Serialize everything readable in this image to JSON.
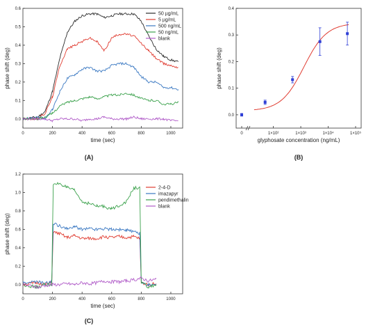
{
  "chart_data": [
    {
      "panel": "(A)",
      "type": "line",
      "xlabel": "time (sec)",
      "ylabel": "phase shift (deg)",
      "xlim": [
        0,
        1080
      ],
      "ylim": [
        -0.05,
        0.6
      ],
      "xticks": [
        0,
        200,
        400,
        600,
        800,
        1000
      ],
      "yticks": [
        0.0,
        0.1,
        0.2,
        0.3,
        0.4,
        0.5,
        0.6
      ],
      "legend": "top-right",
      "series": [
        {
          "name": "50 µg/mL",
          "color": "#2b2b2b",
          "x": [
            0,
            100,
            150,
            200,
            250,
            300,
            350,
            400,
            450,
            500,
            550,
            600,
            650,
            700,
            750,
            800,
            850,
            900,
            950,
            1000,
            1050
          ],
          "y": [
            0.0,
            0.01,
            0.04,
            0.15,
            0.33,
            0.47,
            0.53,
            0.56,
            0.57,
            0.57,
            0.55,
            0.56,
            0.57,
            0.57,
            0.57,
            0.53,
            0.45,
            0.38,
            0.34,
            0.32,
            0.31
          ]
        },
        {
          "name": "5 µg/mL",
          "color": "#e03c31",
          "x": [
            0,
            100,
            150,
            200,
            250,
            300,
            350,
            400,
            450,
            500,
            550,
            600,
            650,
            700,
            750,
            800,
            850,
            900,
            950,
            1000,
            1050
          ],
          "y": [
            0.0,
            0.0,
            0.03,
            0.12,
            0.29,
            0.38,
            0.4,
            0.42,
            0.44,
            0.42,
            0.37,
            0.44,
            0.46,
            0.46,
            0.45,
            0.41,
            0.37,
            0.33,
            0.3,
            0.29,
            0.28
          ]
        },
        {
          "name": "500 ng/mL",
          "color": "#3a78c2",
          "x": [
            0,
            100,
            150,
            200,
            250,
            300,
            350,
            400,
            450,
            500,
            550,
            600,
            650,
            700,
            750,
            800,
            850,
            900,
            950,
            1000,
            1050
          ],
          "y": [
            0.0,
            0.01,
            0.0,
            0.05,
            0.15,
            0.22,
            0.24,
            0.27,
            0.28,
            0.26,
            0.26,
            0.29,
            0.3,
            0.3,
            0.28,
            0.23,
            0.2,
            0.2,
            0.17,
            0.17,
            0.16
          ]
        },
        {
          "name": "50 ng/mL",
          "color": "#3aa14b",
          "x": [
            0,
            100,
            150,
            200,
            250,
            300,
            350,
            400,
            450,
            500,
            550,
            600,
            650,
            700,
            750,
            800,
            850,
            900,
            950,
            1000,
            1050
          ],
          "y": [
            0.0,
            0.0,
            0.01,
            0.03,
            0.07,
            0.09,
            0.1,
            0.11,
            0.12,
            0.11,
            0.12,
            0.13,
            0.13,
            0.14,
            0.13,
            0.11,
            0.1,
            0.1,
            0.08,
            0.08,
            0.09
          ]
        },
        {
          "name": "blank",
          "color": "#b05bc8",
          "x": [
            0,
            100,
            150,
            200,
            250,
            300,
            350,
            400,
            450,
            500,
            550,
            600,
            650,
            700,
            750,
            800,
            850,
            900,
            950,
            1000,
            1050
          ],
          "y": [
            0.0,
            0.0,
            0.0,
            -0.01,
            0.0,
            0.0,
            0.0,
            -0.01,
            0.0,
            0.0,
            0.01,
            0.0,
            0.0,
            0.0,
            0.01,
            0.0,
            0.0,
            0.0,
            0.0,
            -0.01,
            -0.01
          ]
        }
      ]
    },
    {
      "panel": "(B)",
      "type": "scatter",
      "xlabel": "glyphosate concentration (ng/mL)",
      "ylabel": "phase shift (deg)",
      "xscale": "log",
      "ylim": [
        -0.05,
        0.4
      ],
      "yticks": [
        0.0,
        0.1,
        0.2,
        0.3,
        0.4
      ],
      "xtick_labels": [
        "0",
        "1×10²",
        "1×10³",
        "1×10⁴",
        "1×10⁵"
      ],
      "points": [
        {
          "x": 0,
          "y": 0.0,
          "err": 0.005
        },
        {
          "x": 50,
          "y": 0.047,
          "err": 0.008
        },
        {
          "x": 500,
          "y": 0.132,
          "err": 0.012
        },
        {
          "x": 5000,
          "y": 0.275,
          "err": 0.052
        },
        {
          "x": 50000,
          "y": 0.305,
          "err": 0.043
        }
      ],
      "fit_color": "#e03c31",
      "point_color": "#2f3fd6"
    },
    {
      "panel": "(C)",
      "type": "line",
      "xlabel": "time (sec)",
      "ylabel": "phase shift (deg)",
      "xlim": [
        0,
        1080
      ],
      "ylim": [
        -0.1,
        1.2
      ],
      "xticks": [
        0,
        200,
        400,
        600,
        800,
        1000
      ],
      "yticks": [
        0.0,
        0.2,
        0.4,
        0.6,
        0.8,
        1.0,
        1.2
      ],
      "legend": "top-right",
      "series": [
        {
          "name": "2-4-D",
          "color": "#e03c31",
          "x": [
            0,
            100,
            150,
            195,
            205,
            250,
            300,
            350,
            400,
            450,
            500,
            550,
            600,
            650,
            700,
            750,
            790,
            800,
            850,
            900
          ],
          "y": [
            0.0,
            0.02,
            0.0,
            0.02,
            0.57,
            0.55,
            0.51,
            0.53,
            0.5,
            0.5,
            0.5,
            0.52,
            0.51,
            0.52,
            0.51,
            0.52,
            0.5,
            0.02,
            0.0,
            0.01
          ]
        },
        {
          "name": "imazapyr",
          "color": "#3a78c2",
          "x": [
            0,
            100,
            150,
            195,
            205,
            250,
            300,
            350,
            400,
            450,
            500,
            550,
            600,
            650,
            700,
            750,
            790,
            800,
            850,
            900
          ],
          "y": [
            0.02,
            0.03,
            0.01,
            0.03,
            0.66,
            0.64,
            0.6,
            0.63,
            0.6,
            0.61,
            0.6,
            0.61,
            0.6,
            0.6,
            0.59,
            0.57,
            0.56,
            0.02,
            0.0,
            0.0
          ]
        },
        {
          "name": "pendimethalin",
          "color": "#3aa14b",
          "x": [
            0,
            100,
            150,
            195,
            205,
            250,
            300,
            350,
            400,
            450,
            500,
            550,
            600,
            650,
            700,
            750,
            790,
            800,
            850,
            900
          ],
          "y": [
            0.0,
            -0.03,
            0.0,
            0.0,
            1.08,
            1.1,
            1.05,
            1.02,
            0.9,
            0.88,
            0.85,
            0.85,
            0.82,
            0.86,
            0.9,
            1.05,
            1.05,
            0.02,
            -0.03,
            0.0
          ]
        },
        {
          "name": "blank",
          "color": "#b05bc8",
          "x": [
            0,
            100,
            150,
            200,
            250,
            300,
            350,
            400,
            450,
            500,
            550,
            600,
            650,
            700,
            750,
            800,
            850,
            900
          ],
          "y": [
            0.0,
            -0.03,
            -0.01,
            0.0,
            0.0,
            0.01,
            0.0,
            0.02,
            0.01,
            0.02,
            0.04,
            0.03,
            0.03,
            0.04,
            0.05,
            0.07,
            0.04,
            0.06
          ]
        }
      ]
    }
  ]
}
